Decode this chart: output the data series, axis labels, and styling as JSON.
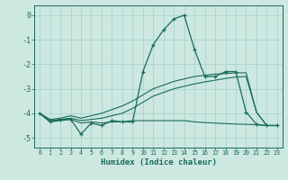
{
  "xlabel": "Humidex (Indice chaleur)",
  "x": [
    0,
    1,
    2,
    3,
    4,
    5,
    6,
    7,
    8,
    9,
    10,
    11,
    12,
    13,
    14,
    15,
    16,
    17,
    18,
    19,
    20,
    21,
    22,
    23
  ],
  "line_flat": [
    -4.0,
    -4.35,
    -4.3,
    -4.25,
    -4.4,
    -4.35,
    -4.4,
    -4.35,
    -4.35,
    -4.3,
    -4.3,
    -4.3,
    -4.3,
    -4.3,
    -4.3,
    -4.35,
    -4.38,
    -4.4,
    -4.42,
    -4.44,
    -4.45,
    -4.47,
    -4.5,
    -4.5
  ],
  "line_marker": [
    -4.0,
    -4.35,
    -4.25,
    -4.25,
    -4.85,
    -4.4,
    -4.5,
    -4.3,
    -4.35,
    -4.35,
    -2.3,
    -1.2,
    -0.6,
    -0.15,
    0.0,
    -1.4,
    -2.5,
    -2.5,
    -2.3,
    -2.3,
    -3.95,
    -4.45,
    -4.5,
    -4.5
  ],
  "line_upper": [
    -4.0,
    -4.25,
    -4.2,
    -4.1,
    -4.2,
    -4.1,
    -4.0,
    -3.85,
    -3.7,
    -3.5,
    -3.25,
    -3.0,
    -2.85,
    -2.7,
    -2.6,
    -2.5,
    -2.45,
    -2.4,
    -2.38,
    -2.35,
    -2.35,
    -3.95,
    -4.5,
    -4.5
  ],
  "line_lower": [
    -4.0,
    -4.3,
    -4.25,
    -4.2,
    -4.3,
    -4.25,
    -4.2,
    -4.1,
    -4.0,
    -3.8,
    -3.55,
    -3.3,
    -3.15,
    -3.0,
    -2.9,
    -2.8,
    -2.72,
    -2.65,
    -2.58,
    -2.52,
    -2.5,
    -3.95,
    -4.5,
    -4.5
  ],
  "bg_color": "#cce8e0",
  "line_color": "#1a6b5a",
  "grid_color": "#aad4cc",
  "ylim": [
    -5.4,
    0.4
  ],
  "yticks": [
    0,
    -1,
    -2,
    -3,
    -4,
    -5
  ],
  "xlim": [
    -0.5,
    23.5
  ]
}
